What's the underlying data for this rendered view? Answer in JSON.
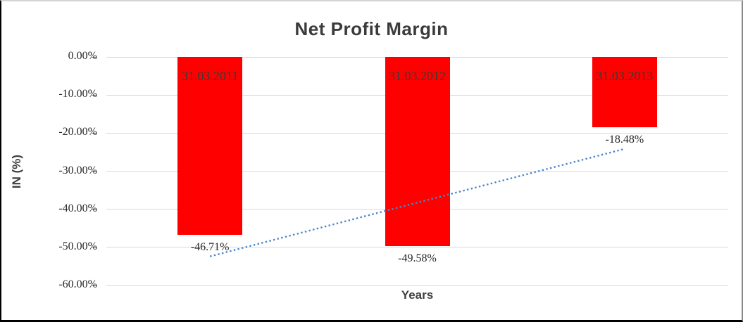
{
  "chart_data": {
    "type": "bar",
    "title": "Net Profit Margin",
    "xlabel": "Years",
    "ylabel": "IN (%)",
    "categories": [
      "31.03.2011",
      "31.03.2012",
      "31.03.2013"
    ],
    "values": [
      -46.71,
      -49.58,
      -18.48
    ],
    "data_labels": [
      "-46.71%",
      "-49.58%",
      "-18.48%"
    ],
    "yticks": [
      {
        "value": 0,
        "label": "0.00%"
      },
      {
        "value": -10,
        "label": "-10.00%"
      },
      {
        "value": -20,
        "label": "-20.00%"
      },
      {
        "value": -30,
        "label": "-30.00%"
      },
      {
        "value": -40,
        "label": "-40.00%"
      },
      {
        "value": -50,
        "label": "-50.00%"
      },
      {
        "value": -60,
        "label": "-60.00%"
      }
    ],
    "ylim": [
      -60,
      0
    ],
    "grid": true,
    "legend": "none",
    "bar_color": "#ff0000",
    "trendline": {
      "type": "linear",
      "style": "dotted",
      "color": "#4a86c8"
    }
  }
}
